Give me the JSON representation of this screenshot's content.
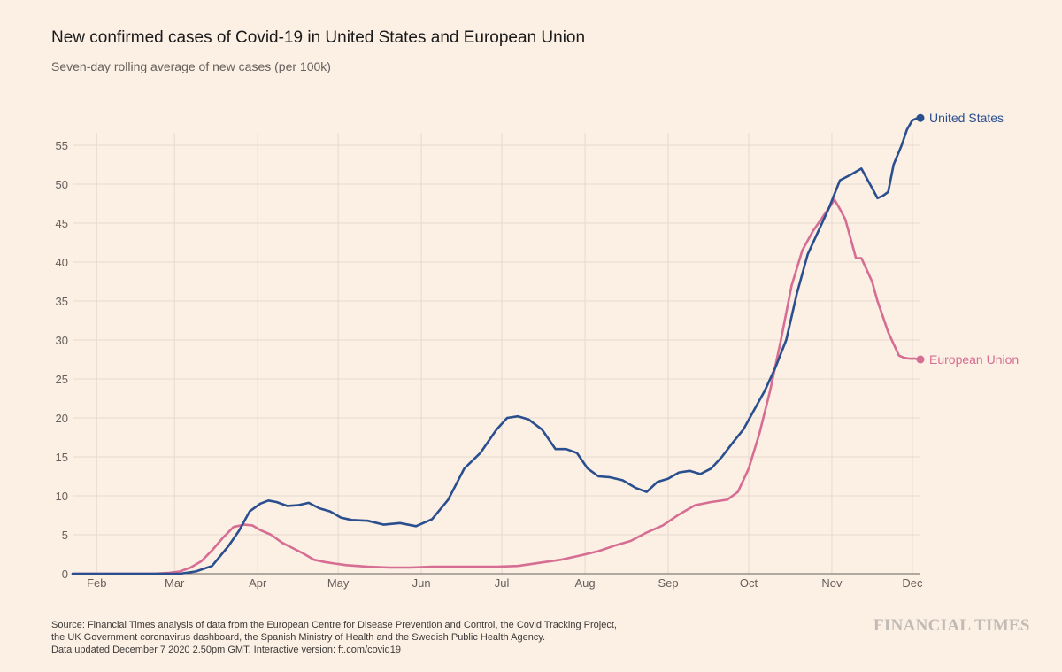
{
  "chart_data": {
    "type": "line",
    "title": "New confirmed cases of Covid-19 in United States and European Union",
    "subtitle": "Seven-day rolling average of new cases (per 100k)",
    "xlabel": "",
    "ylabel": "",
    "ylim": [
      0,
      58
    ],
    "yticks": [
      0,
      5,
      10,
      15,
      20,
      25,
      30,
      35,
      40,
      45,
      50,
      55
    ],
    "xticks": [
      {
        "label": "Feb",
        "day": 9
      },
      {
        "label": "Mar",
        "day": 38
      },
      {
        "label": "Apr",
        "day": 69
      },
      {
        "label": "May",
        "day": 99
      },
      {
        "label": "Jun",
        "day": 130
      },
      {
        "label": "Jul",
        "day": 160
      },
      {
        "label": "Aug",
        "day": 191
      },
      {
        "label": "Sep",
        "day": 222
      },
      {
        "label": "Oct",
        "day": 252
      },
      {
        "label": "Nov",
        "day": 283
      },
      {
        "label": "Dec",
        "day": 313
      }
    ],
    "xlim_days": [
      0,
      316
    ],
    "x_unit": "days since Jan 23 2020",
    "grid": true,
    "series": [
      {
        "name": "United States",
        "color": "#2a4f8f",
        "x": [
          0,
          30,
          40,
          46,
          52,
          58,
          62,
          66,
          70,
          73,
          76,
          80,
          84,
          88,
          92,
          96,
          100,
          104,
          110,
          116,
          122,
          128,
          134,
          140,
          146,
          152,
          158,
          162,
          166,
          170,
          175,
          180,
          184,
          188,
          192,
          196,
          200,
          205,
          210,
          214,
          218,
          222,
          226,
          230,
          234,
          238,
          242,
          246,
          250,
          254,
          258,
          262,
          266,
          270,
          274,
          278,
          282,
          286,
          290,
          294,
          298,
          300,
          302,
          304,
          306,
          309,
          311,
          313,
          315,
          316
        ],
        "values": [
          0,
          0,
          0,
          0.3,
          1,
          3.5,
          5.5,
          8,
          9,
          9.4,
          9.2,
          8.7,
          8.8,
          9.1,
          8.4,
          8,
          7.2,
          6.9,
          6.8,
          6.3,
          6.5,
          6.1,
          7,
          9.5,
          13.5,
          15.5,
          18.5,
          20,
          20.2,
          19.8,
          18.5,
          16,
          16,
          15.5,
          13.5,
          12.5,
          12.4,
          12,
          11,
          10.5,
          11.8,
          12.2,
          13,
          13.2,
          12.8,
          13.5,
          15,
          16.8,
          18.5,
          21,
          23.5,
          26.5,
          30,
          36,
          41,
          44,
          47,
          50.5,
          51.2,
          52,
          49.5,
          48.2,
          48.5,
          49,
          52.5,
          55,
          57,
          58.2,
          58.5,
          58.5
        ]
      },
      {
        "name": "European Union",
        "color": "#d66d93",
        "x": [
          0,
          30,
          36,
          40,
          44,
          48,
          52,
          56,
          60,
          64,
          67,
          70,
          74,
          78,
          82,
          86,
          90,
          94,
          98,
          102,
          110,
          118,
          126,
          134,
          142,
          150,
          158,
          166,
          174,
          182,
          190,
          196,
          202,
          208,
          214,
          220,
          226,
          232,
          238,
          244,
          248,
          252,
          256,
          260,
          264,
          268,
          272,
          276,
          280,
          284,
          286,
          288,
          290,
          292,
          294,
          296,
          298,
          300,
          302,
          304,
          306,
          308,
          310,
          312,
          314,
          316
        ],
        "values": [
          0,
          0,
          0.1,
          0.3,
          0.8,
          1.6,
          3,
          4.6,
          6,
          6.3,
          6.2,
          5.6,
          5,
          4,
          3.3,
          2.6,
          1.8,
          1.5,
          1.3,
          1.1,
          0.9,
          0.8,
          0.8,
          0.9,
          0.9,
          0.9,
          0.9,
          1,
          1.4,
          1.8,
          2.4,
          2.9,
          3.6,
          4.2,
          5.3,
          6.2,
          7.6,
          8.8,
          9.2,
          9.5,
          10.5,
          13.5,
          18,
          23.5,
          30,
          37,
          41.5,
          44,
          46,
          48,
          46.8,
          45.5,
          43,
          40.5,
          40.5,
          39,
          37.5,
          35,
          33,
          31,
          29.5,
          28,
          27.7,
          27.6,
          27.6,
          27.5
        ]
      }
    ]
  },
  "labels": {
    "us": "United States",
    "eu": "European Union"
  },
  "source_lines": [
    "Source: Financial Times analysis of data from the European Centre for Disease Prevention and Control, the Covid Tracking Project,",
    "the UK Government coronavirus dashboard, the Spanish Ministry of Health and the Swedish Public Health Agency.",
    "Data updated December 7 2020 2.50pm GMT. Interactive version: ft.com/covid19"
  ],
  "brand": "FINANCIAL TIMES"
}
